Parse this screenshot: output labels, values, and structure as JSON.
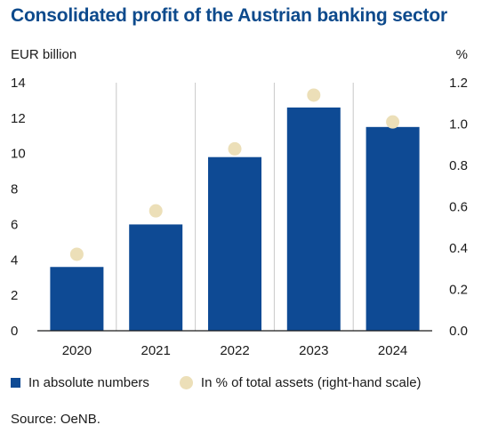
{
  "title": "Consolidated profit of the Austrian banking sector",
  "source": "Source: OeNB.",
  "colors": {
    "bar": "#0e4a94",
    "dot": "#ecdfb8",
    "title": "#0d4a8c",
    "grid": "#c8c8c8"
  },
  "chart_data": {
    "type": "bar",
    "categories": [
      "2020",
      "2021",
      "2022",
      "2023",
      "2024"
    ],
    "series": [
      {
        "name": "In absolute numbers",
        "type": "bar",
        "axis": "left",
        "values": [
          3.6,
          6.0,
          9.8,
          12.6,
          11.5
        ]
      },
      {
        "name": "In % of total assets (right-hand scale)",
        "type": "scatter",
        "axis": "right",
        "values": [
          0.37,
          0.58,
          0.88,
          1.14,
          1.01
        ]
      }
    ],
    "ylabel": "EUR billion",
    "ylabel_right": "%",
    "ylim": [
      0,
      14
    ],
    "ylim_right": [
      0,
      1.2
    ],
    "yticks": [
      "0",
      "2",
      "4",
      "6",
      "8",
      "10",
      "12",
      "14"
    ],
    "yticks_right": [
      "0.0",
      "0.2",
      "0.4",
      "0.6",
      "0.8",
      "1.0",
      "1.2"
    ],
    "grid": "vertical separators",
    "legend": "bottom"
  }
}
